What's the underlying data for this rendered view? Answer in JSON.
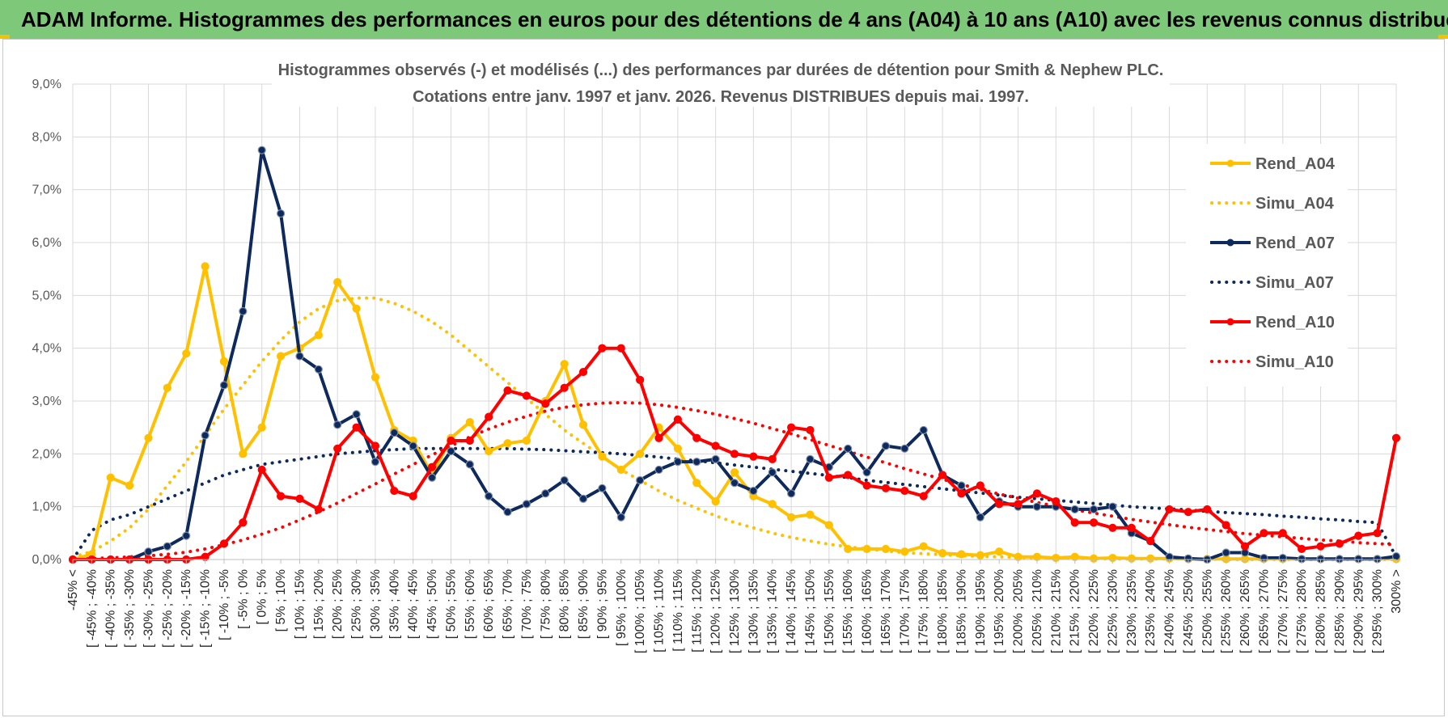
{
  "header": {
    "title": "ADAM Informe. Histogrammes des performances en euros pour des détentions de 4 ans (A04) à 10 ans (A10) avec les revenus connus distribués"
  },
  "colors": {
    "header_bg": "#7ec87a",
    "A04": "#ffc000",
    "A07": "#0e2a5c",
    "A10": "#ff0000",
    "grid": "#d9d9d9"
  },
  "chart_data": {
    "type": "line",
    "title_line1": "Histogrammes observés (-) et modélisés (...) des performances par durées de détention pour Smith & Nephew PLC.",
    "title_line2": "Cotations entre janv. 1997 et janv. 2026. Revenus DISTRIBUES depuis mai. 1997.",
    "xlabel": "",
    "ylabel": "",
    "ylim": [
      0,
      9
    ],
    "y_ticks": [
      "0,0%",
      "1,0%",
      "2,0%",
      "3,0%",
      "4,0%",
      "5,0%",
      "6,0%",
      "7,0%",
      "8,0%",
      "9,0%"
    ],
    "grid": true,
    "legend_position": "right",
    "categories": [
      "-45% <",
      "[ -45% ; -40%",
      "[ -40% ; -35%",
      "[ -35% ; -30%",
      "[ -30% ; -25%",
      "[ -25% ; -20%",
      "[ -20% ; -15%",
      "[ -15% ; -10%",
      "[ -10% ; -5%",
      "[ -5% ; 0%",
      "[ 0% ; 5%",
      "[ 5% ; 10%",
      "[ 10% ; 15%",
      "[ 15% ; 20%",
      "[ 20% ; 25%",
      "[ 25% ; 30%",
      "[ 30% ; 35%",
      "[ 35% ; 40%",
      "[ 40% ; 45%",
      "[ 45% ; 50%",
      "[ 50% ; 55%",
      "[ 55% ; 60%",
      "[ 60% ; 65%",
      "[ 65% ; 70%",
      "[ 70% ; 75%",
      "[ 75% ; 80%",
      "[ 80% ; 85%",
      "[ 85% ; 90%",
      "[ 90% ; 95%",
      "[ 95% ; 100%",
      "[ 100% ; 105%",
      "[ 105% ; 110%",
      "[ 110% ; 115%",
      "[ 115% ; 120%",
      "[ 120% ; 125%",
      "[ 125% ; 130%",
      "[ 130% ; 135%",
      "[ 135% ; 140%",
      "[ 140% ; 145%",
      "[ 145% ; 150%",
      "[ 150% ; 155%",
      "[ 155% ; 160%",
      "[ 160% ; 165%",
      "[ 165% ; 170%",
      "[ 170% ; 175%",
      "[ 175% ; 180%",
      "[ 180% ; 185%",
      "[ 185% ; 190%",
      "[ 190% ; 195%",
      "[ 195% ; 200%",
      "[ 200% ; 205%",
      "[ 205% ; 210%",
      "[ 210% ; 215%",
      "[ 215% ; 220%",
      "[ 220% ; 225%",
      "[ 225% ; 230%",
      "[ 230% ; 235%",
      "[ 235% ; 240%",
      "[ 240% ; 245%",
      "[ 245% ; 250%",
      "[ 250% ; 255%",
      "[ 255% ; 260%",
      "[ 260% ; 265%",
      "[ 265% ; 270%",
      "[ 270% ; 275%",
      "[ 275% ; 280%",
      "[ 280% ; 285%",
      "[ 285% ; 290%",
      "[ 290% ; 295%",
      "[ 295% ; 300%",
      "300% >"
    ],
    "series": [
      {
        "name": "Rend_A04",
        "style": "solid",
        "color": "#ffc000",
        "values": [
          0,
          0.1,
          1.55,
          1.4,
          2.3,
          3.25,
          3.9,
          5.55,
          3.75,
          2.0,
          2.5,
          3.85,
          4.0,
          4.25,
          5.25,
          4.75,
          3.45,
          2.45,
          2.25,
          1.6,
          2.3,
          2.6,
          2.05,
          2.2,
          2.25,
          3.0,
          3.7,
          2.55,
          1.95,
          1.7,
          2.0,
          2.5,
          2.1,
          1.45,
          1.1,
          1.65,
          1.2,
          1.05,
          0.8,
          0.85,
          0.65,
          0.2,
          0.2,
          0.2,
          0.15,
          0.25,
          0.12,
          0.1,
          0.08,
          0.15,
          0.05,
          0.05,
          0.03,
          0.05,
          0.02,
          0.03,
          0.02,
          0.02,
          0.02,
          0.01,
          0.01,
          0.01,
          0.01,
          0.01,
          0.01,
          0.01,
          0.01,
          0.01,
          0.01,
          0.01,
          0.01
        ]
      },
      {
        "name": "Simu_A04",
        "style": "dotted",
        "color": "#ffc000",
        "values": [
          0.05,
          0.15,
          0.35,
          0.6,
          0.95,
          1.4,
          1.85,
          2.35,
          2.85,
          3.3,
          3.75,
          4.15,
          4.5,
          4.75,
          4.9,
          4.95,
          4.95,
          4.85,
          4.7,
          4.5,
          4.25,
          3.95,
          3.65,
          3.35,
          3.05,
          2.75,
          2.45,
          2.2,
          1.95,
          1.7,
          1.5,
          1.3,
          1.12,
          0.97,
          0.83,
          0.7,
          0.6,
          0.5,
          0.42,
          0.35,
          0.29,
          0.24,
          0.2,
          0.16,
          0.13,
          0.11,
          0.09,
          0.07,
          0.06,
          0.05,
          0.04,
          0.03,
          0.03,
          0.02,
          0.02,
          0.01,
          0.01,
          0.01,
          0.01,
          0.01,
          0.01,
          0.0,
          0.0,
          0.0,
          0.0,
          0.0,
          0.0,
          0.0,
          0.0,
          0.0,
          0.0
        ]
      },
      {
        "name": "Rend_A07",
        "style": "solid",
        "color": "#0e2a5c",
        "values": [
          0,
          0,
          0,
          0,
          0.15,
          0.25,
          0.45,
          2.35,
          3.3,
          4.7,
          7.75,
          6.55,
          3.85,
          3.6,
          2.55,
          2.75,
          1.85,
          2.4,
          2.15,
          1.55,
          2.05,
          1.8,
          1.2,
          0.9,
          1.05,
          1.25,
          1.5,
          1.15,
          1.35,
          0.8,
          1.5,
          1.7,
          1.85,
          1.85,
          1.9,
          1.45,
          1.3,
          1.65,
          1.25,
          1.9,
          1.75,
          2.1,
          1.65,
          2.15,
          2.1,
          2.45,
          1.6,
          1.4,
          0.8,
          1.1,
          1.0,
          1.0,
          1.0,
          0.95,
          0.95,
          1.0,
          0.5,
          0.35,
          0.05,
          0.02,
          0.0,
          0.13,
          0.13,
          0.03,
          0.03,
          0.01,
          0.01,
          0.01,
          0.01,
          0.01,
          0.06
        ]
      },
      {
        "name": "Simu_A07",
        "style": "dotted",
        "color": "#0e2a5c",
        "values": [
          0.0,
          0.55,
          0.75,
          0.85,
          1.0,
          1.15,
          1.3,
          1.45,
          1.6,
          1.7,
          1.8,
          1.85,
          1.9,
          1.95,
          2.0,
          2.03,
          2.06,
          2.08,
          2.1,
          2.1,
          2.1,
          2.1,
          2.1,
          2.1,
          2.09,
          2.08,
          2.06,
          2.04,
          2.02,
          2.0,
          1.97,
          1.94,
          1.9,
          1.87,
          1.83,
          1.79,
          1.75,
          1.71,
          1.67,
          1.63,
          1.59,
          1.55,
          1.5,
          1.46,
          1.42,
          1.38,
          1.34,
          1.3,
          1.26,
          1.22,
          1.18,
          1.15,
          1.12,
          1.09,
          1.06,
          1.03,
          1.0,
          0.98,
          0.96,
          0.94,
          0.91,
          0.89,
          0.87,
          0.85,
          0.82,
          0.8,
          0.77,
          0.75,
          0.72,
          0.7,
          0.05
        ]
      },
      {
        "name": "Rend_A10",
        "style": "solid",
        "color": "#ff0000",
        "values": [
          0,
          0,
          0,
          0,
          0,
          0,
          0,
          0.05,
          0.3,
          0.7,
          1.7,
          1.2,
          1.15,
          0.95,
          2.1,
          2.5,
          2.15,
          1.3,
          1.2,
          1.75,
          2.25,
          2.25,
          2.7,
          3.2,
          3.1,
          2.95,
          3.25,
          3.55,
          4.0,
          4.0,
          3.4,
          2.3,
          2.65,
          2.3,
          2.15,
          2.0,
          1.95,
          1.9,
          2.5,
          2.45,
          1.55,
          1.6,
          1.4,
          1.35,
          1.3,
          1.2,
          1.6,
          1.25,
          1.4,
          1.05,
          1.05,
          1.25,
          1.1,
          0.7,
          0.7,
          0.6,
          0.6,
          0.35,
          0.95,
          0.9,
          0.95,
          0.65,
          0.25,
          0.5,
          0.5,
          0.2,
          0.25,
          0.3,
          0.45,
          0.5,
          2.3
        ]
      },
      {
        "name": "Simu_A10",
        "style": "dotted",
        "color": "#ff0000",
        "values": [
          0.0,
          0.02,
          0.03,
          0.05,
          0.07,
          0.1,
          0.14,
          0.2,
          0.28,
          0.37,
          0.48,
          0.6,
          0.75,
          0.9,
          1.07,
          1.25,
          1.43,
          1.62,
          1.8,
          1.98,
          2.15,
          2.32,
          2.47,
          2.6,
          2.71,
          2.81,
          2.88,
          2.93,
          2.96,
          2.97,
          2.96,
          2.93,
          2.88,
          2.82,
          2.75,
          2.67,
          2.58,
          2.48,
          2.38,
          2.27,
          2.16,
          2.05,
          1.94,
          1.83,
          1.72,
          1.62,
          1.52,
          1.42,
          1.33,
          1.24,
          1.16,
          1.08,
          1.01,
          0.94,
          0.88,
          0.82,
          0.76,
          0.71,
          0.66,
          0.61,
          0.57,
          0.53,
          0.49,
          0.46,
          0.43,
          0.4,
          0.37,
          0.35,
          0.32,
          0.3,
          0.28
        ]
      }
    ]
  }
}
